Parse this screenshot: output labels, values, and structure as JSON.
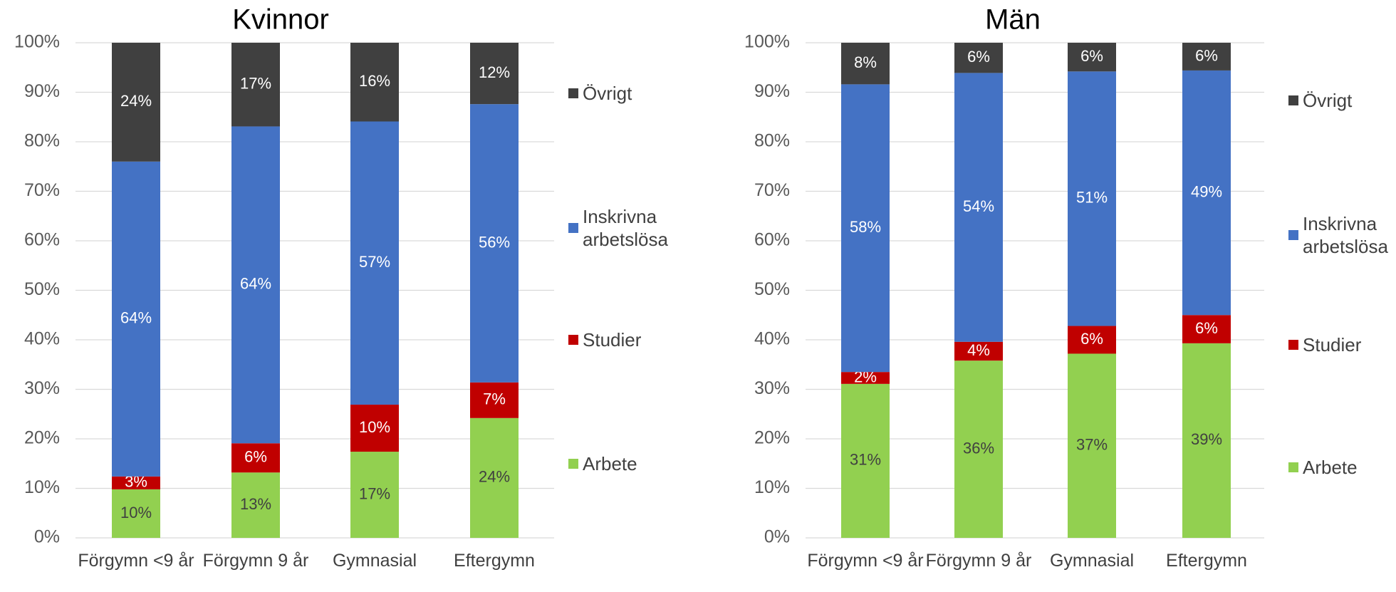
{
  "chart_data": [
    {
      "type": "bar",
      "stacked": true,
      "title": "Kvinnor",
      "categories": [
        "Förgymn <9 år",
        "Förgymn 9 år",
        "Gymnasial",
        "Eftergymn"
      ],
      "series": [
        {
          "name": "Arbete",
          "color": "#92d050",
          "values": [
            9.8,
            13.2,
            17.4,
            24.2
          ],
          "value_labels": [
            "10%",
            "13%",
            "17%",
            "24%"
          ]
        },
        {
          "name": "Studier",
          "color": "#c00000",
          "values": [
            2.6,
            5.9,
            9.5,
            7.2
          ],
          "value_labels": [
            "3%",
            "6%",
            "10%",
            "7%"
          ]
        },
        {
          "name": "Inskrivna arbetslösa",
          "color": "#4472c4",
          "values": [
            63.6,
            64.0,
            57.2,
            56.2
          ],
          "value_labels": [
            "64%",
            "64%",
            "57%",
            "56%"
          ]
        },
        {
          "name": "Övrigt",
          "color": "#404040",
          "values": [
            24.0,
            16.9,
            15.9,
            12.4
          ],
          "value_labels": [
            "24%",
            "17%",
            "16%",
            "12%"
          ]
        }
      ],
      "ylim": [
        0,
        100
      ],
      "yticks": [
        {
          "value": 0,
          "label": "0%"
        },
        {
          "value": 10,
          "label": "10%"
        },
        {
          "value": 20,
          "label": "20%"
        },
        {
          "value": 30,
          "label": "30%"
        },
        {
          "value": 40,
          "label": "40%"
        },
        {
          "value": 50,
          "label": "50%"
        },
        {
          "value": 60,
          "label": "60%"
        },
        {
          "value": 70,
          "label": "70%"
        },
        {
          "value": 80,
          "label": "80%"
        },
        {
          "value": 90,
          "label": "90%"
        },
        {
          "value": 100,
          "label": "100%"
        }
      ],
      "grid": true,
      "legend": "right"
    },
    {
      "type": "bar",
      "stacked": true,
      "title": "Män",
      "categories": [
        "Förgymn <9 år",
        "Förgymn 9 år",
        "Gymnasial",
        "Eftergymn"
      ],
      "series": [
        {
          "name": "Arbete",
          "color": "#92d050",
          "values": [
            31.1,
            35.8,
            37.2,
            39.3
          ],
          "value_labels": [
            "31%",
            "36%",
            "37%",
            "39%"
          ]
        },
        {
          "name": "Studier",
          "color": "#c00000",
          "values": [
            2.4,
            3.8,
            5.6,
            5.7
          ],
          "value_labels": [
            "2%",
            "4%",
            "6%",
            "6%"
          ]
        },
        {
          "name": "Inskrivna arbetslösa",
          "color": "#4472c4",
          "values": [
            58.1,
            54.3,
            51.4,
            49.4
          ],
          "value_labels": [
            "58%",
            "54%",
            "51%",
            "49%"
          ]
        },
        {
          "name": "Övrigt",
          "color": "#404040",
          "values": [
            8.4,
            6.1,
            5.8,
            5.6
          ],
          "value_labels": [
            "8%",
            "6%",
            "6%",
            "6%"
          ]
        }
      ],
      "ylim": [
        0,
        100
      ],
      "yticks": [
        {
          "value": 0,
          "label": "0%"
        },
        {
          "value": 10,
          "label": "10%"
        },
        {
          "value": 20,
          "label": "20%"
        },
        {
          "value": 30,
          "label": "30%"
        },
        {
          "value": 40,
          "label": "40%"
        },
        {
          "value": 50,
          "label": "50%"
        },
        {
          "value": 60,
          "label": "60%"
        },
        {
          "value": 70,
          "label": "70%"
        },
        {
          "value": 80,
          "label": "80%"
        },
        {
          "value": 90,
          "label": "90%"
        },
        {
          "value": 100,
          "label": "100%"
        }
      ],
      "grid": true,
      "legend": "right"
    }
  ]
}
